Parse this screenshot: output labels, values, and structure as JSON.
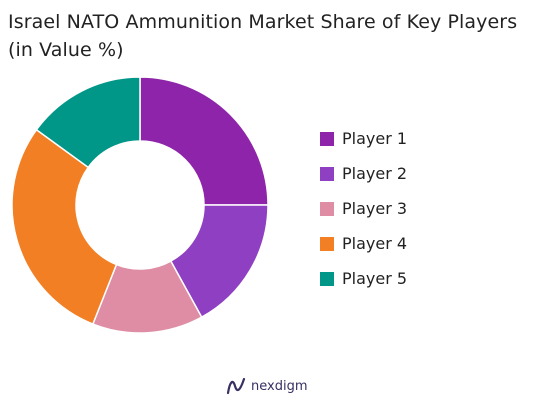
{
  "title_line1": "Israel NATO Ammunition Market Share of Key Players",
  "title_line2": "(in Value %)",
  "brand": {
    "name": "nexdigm",
    "icon": "nexdigm-logo-icon"
  },
  "chart_data": {
    "type": "pie",
    "variant": "donut",
    "title": "Israel NATO Ammunition Market Share of Key Players (in Value %)",
    "categories": [
      "Player 1",
      "Player 2",
      "Player 3",
      "Player 4",
      "Player 5"
    ],
    "values": [
      25,
      17,
      14,
      29,
      15
    ],
    "colors": [
      "#8e24aa",
      "#8e3fc2",
      "#de8da5",
      "#f27f23",
      "#009688"
    ],
    "legend_position": "right"
  }
}
